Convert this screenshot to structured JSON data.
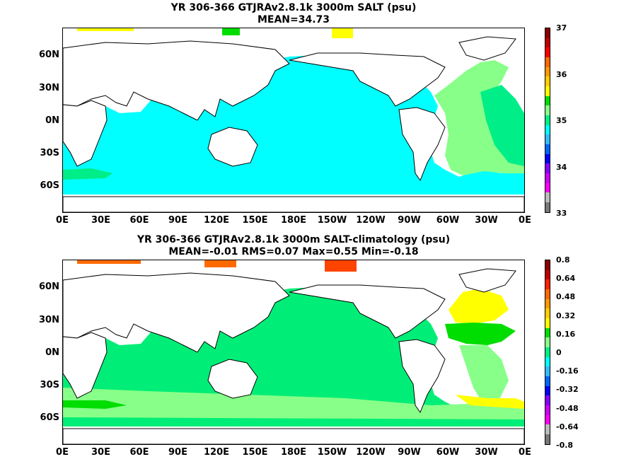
{
  "panels": [
    {
      "title": "YR 306-366 GTJRAv2.8.1k 3000m SALT (psu)",
      "subtitle": "MEAN=34.73",
      "ocean_color": "#00ffff",
      "colorbar": {
        "labels": [
          "37",
          "36",
          "35",
          "34",
          "33"
        ],
        "colors": [
          "#8b0000",
          "#c00000",
          "#ff0000",
          "#ff6a00",
          "#ff9a00",
          "#ffcc00",
          "#ffff00",
          "#00dd00",
          "#88ff88",
          "#00ee88",
          "#00ffff",
          "#33bbff",
          "#0066ff",
          "#0000ff",
          "#8800ff",
          "#cc00ff",
          "#ff00ff",
          "#bbbbbb",
          "#777777"
        ]
      }
    },
    {
      "title": "YR 306-366 GTJRAv2.8.1k 3000m SALT-climatology (psu)",
      "subtitle": "MEAN=-0.01   RMS=0.07   Max=0.55   Min=-0.18",
      "ocean_color": "#00ee77",
      "colorbar": {
        "labels": [
          "0.8",
          "0.64",
          "0.48",
          "0.32",
          "0.16",
          "0",
          "-0.16",
          "-0.32",
          "-0.48",
          "-0.64",
          "-0.8"
        ],
        "colors": [
          "#8b0000",
          "#c00000",
          "#ff2200",
          "#ff6a00",
          "#ff9a00",
          "#ffcc00",
          "#ffff00",
          "#00dd00",
          "#88ff88",
          "#00ee88",
          "#00ffff",
          "#33bbff",
          "#0066ff",
          "#0000ff",
          "#8800ff",
          "#cc00ff",
          "#ff00ff",
          "#bbbbbb",
          "#777777"
        ]
      }
    }
  ],
  "axes": {
    "x_ticks": [
      "0E",
      "30E",
      "60E",
      "90E",
      "120E",
      "150E",
      "180E",
      "150W",
      "120W",
      "90W",
      "60W",
      "30W",
      "0E"
    ],
    "y_ticks": [
      "60N",
      "30N",
      "0N",
      "30S",
      "60S"
    ]
  },
  "chart_data": {
    "type": "heatmap",
    "maps": [
      {
        "title": "YR 306-366 GTJRAv2.8.1k 3000m SALT (psu)",
        "mean": 34.73,
        "colorbar_range": [
          33,
          37
        ]
      },
      {
        "title": "YR 306-366 GTJRAv2.8.1k 3000m SALT-climatology (psu)",
        "mean": -0.01,
        "rms": 0.07,
        "max": 0.55,
        "min": -0.18,
        "colorbar_range": [
          -0.8,
          0.8
        ]
      }
    ]
  }
}
